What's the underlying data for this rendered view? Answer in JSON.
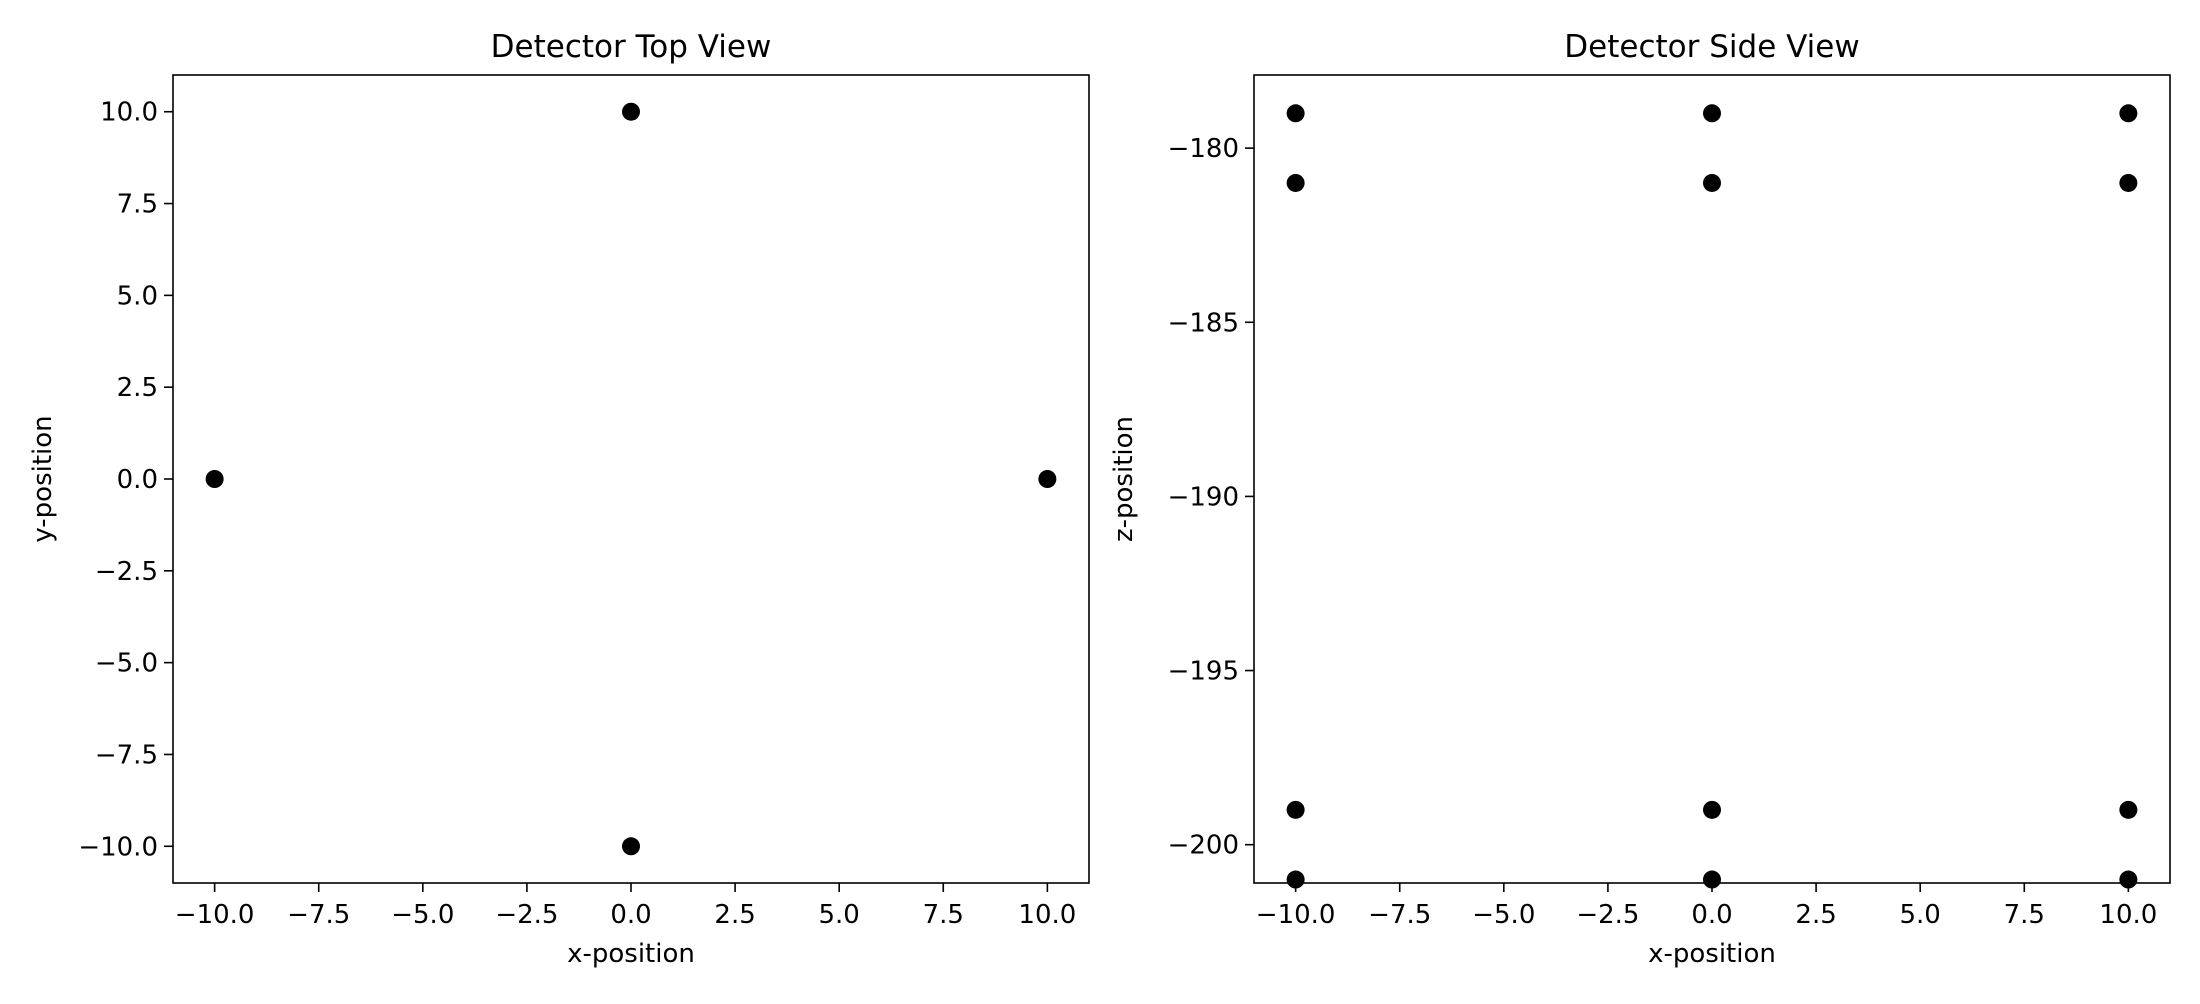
{
  "chart_data": [
    {
      "type": "scatter",
      "title": "Detector Top View",
      "xlabel": "x-position",
      "ylabel": "y-position",
      "xlim": [
        -11,
        11
      ],
      "ylim": [
        -11,
        11
      ],
      "xticks": [
        -10,
        -7.5,
        -5,
        -2.5,
        0,
        2.5,
        5,
        7.5,
        10
      ],
      "xtick_labels": [
        "−10.0",
        "−7.5",
        "−5.0",
        "−2.5",
        "0.0",
        "2.5",
        "5.0",
        "7.5",
        "10.0"
      ],
      "yticks": [
        -10,
        -7.5,
        -5,
        -2.5,
        0,
        2.5,
        5,
        7.5,
        10
      ],
      "ytick_labels": [
        "−10.0",
        "−7.5",
        "−5.0",
        "−2.5",
        "0.0",
        "2.5",
        "5.0",
        "7.5",
        "10.0"
      ],
      "grid": false,
      "marker_color": "#000000",
      "points": [
        {
          "x": 0,
          "y": 10
        },
        {
          "x": -10,
          "y": 0
        },
        {
          "x": 10,
          "y": 0
        },
        {
          "x": 0,
          "y": -10
        }
      ]
    },
    {
      "type": "scatter",
      "title": "Detector Side View",
      "xlabel": "x-position",
      "ylabel": "z-position",
      "xlim": [
        -11,
        11
      ],
      "ylim": [
        -201.1,
        -177.9
      ],
      "xticks": [
        -10,
        -7.5,
        -5,
        -2.5,
        0,
        2.5,
        5,
        7.5,
        10
      ],
      "xtick_labels": [
        "−10.0",
        "−7.5",
        "−5.0",
        "−2.5",
        "0.0",
        "2.5",
        "5.0",
        "7.5",
        "10.0"
      ],
      "yticks": [
        -200,
        -195,
        -190,
        -185,
        -180
      ],
      "ytick_labels": [
        "−200",
        "−195",
        "−190",
        "−185",
        "−180"
      ],
      "grid": false,
      "marker_color": "#000000",
      "points": [
        {
          "x": -10,
          "y": -179
        },
        {
          "x": 0,
          "y": -179
        },
        {
          "x": 10,
          "y": -179
        },
        {
          "x": -10,
          "y": -181
        },
        {
          "x": 0,
          "y": -181
        },
        {
          "x": 10,
          "y": -181
        },
        {
          "x": -10,
          "y": -199
        },
        {
          "x": 0,
          "y": -199
        },
        {
          "x": 10,
          "y": -199
        },
        {
          "x": -10,
          "y": -201
        },
        {
          "x": 0,
          "y": -201
        },
        {
          "x": 10,
          "y": -201
        }
      ]
    }
  ]
}
